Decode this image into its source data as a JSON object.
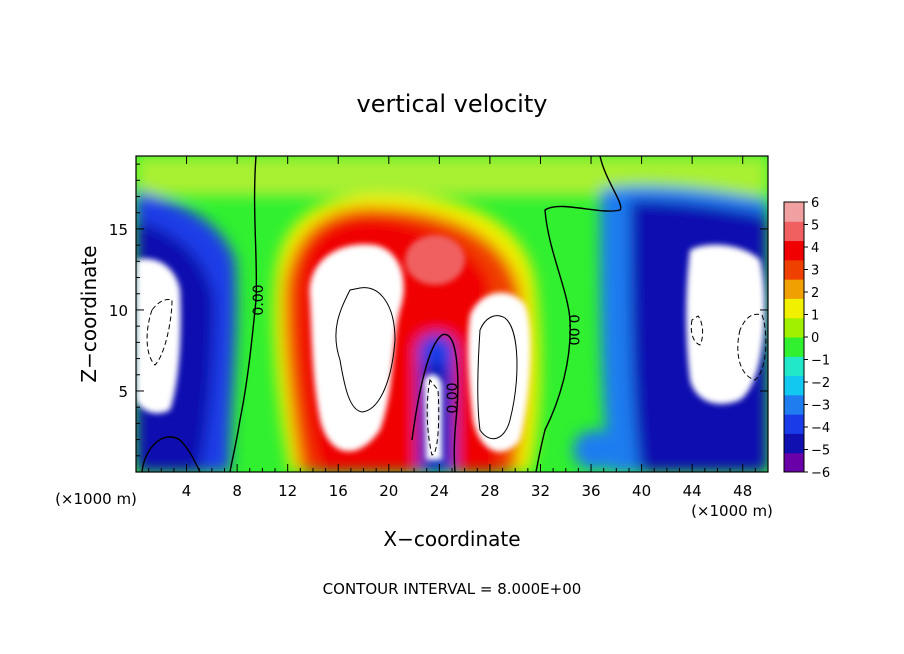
{
  "chart_data": {
    "type": "heatmap",
    "title": "vertical velocity",
    "xlabel": "X−coordinate",
    "ylabel": "Z−coordinate",
    "x_unit_label": "(×1000 m)",
    "y_unit_label": "(×1000 m)",
    "xlim": [
      0,
      50
    ],
    "ylim": [
      0,
      19.5
    ],
    "x_ticks": [
      "4",
      "8",
      "12",
      "16",
      "20",
      "24",
      "28",
      "32",
      "36",
      "40",
      "44",
      "48"
    ],
    "y_ticks": [
      "5",
      "10",
      "15"
    ],
    "colorbar": {
      "levels": [
        "6",
        "5",
        "4",
        "3",
        "2",
        "1",
        "0",
        "−1",
        "−2",
        "−3",
        "−4",
        "−5",
        "−6"
      ],
      "min": -6,
      "max": 6,
      "colors": [
        "#6a00a8",
        "#1010b0",
        "#1a3ce8",
        "#1f7df0",
        "#10c8f0",
        "#20e8c8",
        "#30f030",
        "#a0f000",
        "#f0f000",
        "#f0a000",
        "#f04000",
        "#f00000",
        "#f06060",
        "#f0a0a0"
      ]
    },
    "contour_label": "0.00",
    "annotation": "CONTOUR INTERVAL =  8.000E+00"
  }
}
